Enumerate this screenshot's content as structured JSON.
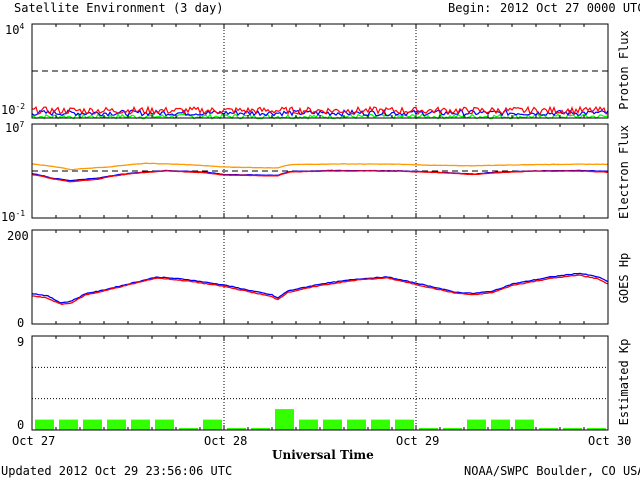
{
  "header": {
    "title": "Satellite Environment (3 day)",
    "begin_label": "Begin:",
    "begin_value": "2012 Oct 27 0000 UTC"
  },
  "footer": {
    "updated": "Updated 2012 Oct 29 23:56:06 UTC",
    "credit": "NOAA/SWPC Boulder, CO USA"
  },
  "xaxis": {
    "label": "Universal Time",
    "ticks": [
      "Oct 27",
      "Oct 28",
      "Oct 29",
      "Oct 30"
    ]
  },
  "colors": {
    "red": "#ff0000",
    "blue": "#0000ff",
    "green": "#00ff00",
    "orange": "#ff9900",
    "kp_bar": "#33ff00"
  },
  "chart_data": [
    {
      "type": "line",
      "ylabel": "Proton Flux",
      "yscale": "log",
      "ylim": [
        0.01,
        10000
      ],
      "ytick_labels": {
        "top": "10",
        "top_exp": "4",
        "bottom": "10",
        "bottom_exp": "-2"
      },
      "threshold": 10,
      "x_days": [
        0,
        3
      ],
      "series": [
        {
          "color": "red",
          "mean": 0.03,
          "spread": 0.45
        },
        {
          "color": "blue",
          "mean": 0.021,
          "spread": 0.35
        },
        {
          "color": "green",
          "mean": 0.0125,
          "spread": 0.3
        }
      ]
    },
    {
      "type": "line",
      "ylabel": "Electron Flux",
      "yscale": "log",
      "ylim": [
        0.1,
        10000000
      ],
      "ytick_labels": {
        "top": "10",
        "top_exp": "7",
        "bottom": "10",
        "bottom_exp": "-1"
      },
      "threshold": 1000,
      "series": [
        {
          "color": "orange",
          "points": [
            [
              0,
              4000
            ],
            [
              0.1,
              2500
            ],
            [
              0.2,
              1300
            ],
            [
              0.4,
              2200
            ],
            [
              0.6,
              4500
            ],
            [
              0.8,
              3500
            ],
            [
              1.0,
              2200
            ],
            [
              1.28,
              1800
            ],
            [
              1.35,
              3500
            ],
            [
              1.6,
              4000
            ],
            [
              1.9,
              3800
            ],
            [
              2.1,
              3000
            ],
            [
              2.3,
              2800
            ],
            [
              2.6,
              3500
            ],
            [
              2.85,
              3800
            ],
            [
              3.0,
              3700
            ]
          ]
        },
        {
          "color": "blue",
          "points": [
            [
              0,
              600
            ],
            [
              0.1,
              250
            ],
            [
              0.2,
              150
            ],
            [
              0.35,
              250
            ],
            [
              0.5,
              600
            ],
            [
              0.7,
              1100
            ],
            [
              0.9,
              800
            ],
            [
              1.0,
              500
            ],
            [
              1.28,
              430
            ],
            [
              1.35,
              900
            ],
            [
              1.55,
              1100
            ],
            [
              1.9,
              1050
            ],
            [
              2.1,
              800
            ],
            [
              2.3,
              550
            ],
            [
              2.4,
              750
            ],
            [
              2.6,
              1000
            ],
            [
              2.85,
              1100
            ],
            [
              3.0,
              950
            ]
          ]
        },
        {
          "color": "red",
          "points": [
            [
              0,
              500
            ],
            [
              0.1,
              220
            ],
            [
              0.2,
              120
            ],
            [
              0.35,
              200
            ],
            [
              0.5,
              550
            ],
            [
              0.7,
              1000
            ],
            [
              0.9,
              700
            ],
            [
              1.0,
              450
            ],
            [
              1.28,
              380
            ],
            [
              1.35,
              850
            ],
            [
              1.55,
              1000
            ],
            [
              1.9,
              980
            ],
            [
              2.1,
              750
            ],
            [
              2.3,
              500
            ],
            [
              2.4,
              680
            ],
            [
              2.6,
              950
            ],
            [
              2.85,
              1000
            ],
            [
              3.0,
              800
            ]
          ]
        }
      ]
    },
    {
      "type": "line",
      "ylabel": "GOES Hp",
      "ylim": [
        0,
        200
      ],
      "ytick_labels": {
        "top": "200",
        "bottom": "0"
      },
      "series": [
        {
          "color": "blue",
          "points": [
            [
              0,
              65
            ],
            [
              0.08,
              60
            ],
            [
              0.15,
              45
            ],
            [
              0.2,
              48
            ],
            [
              0.25,
              58
            ],
            [
              0.28,
              65
            ],
            [
              0.35,
              70
            ],
            [
              0.5,
              85
            ],
            [
              0.65,
              100
            ],
            [
              0.8,
              95
            ],
            [
              1.0,
              83
            ],
            [
              1.15,
              70
            ],
            [
              1.25,
              62
            ],
            [
              1.28,
              55
            ],
            [
              1.33,
              70
            ],
            [
              1.5,
              85
            ],
            [
              1.7,
              96
            ],
            [
              1.85,
              100
            ],
            [
              2.0,
              87
            ],
            [
              2.1,
              78
            ],
            [
              2.2,
              68
            ],
            [
              2.3,
              65
            ],
            [
              2.4,
              70
            ],
            [
              2.5,
              85
            ],
            [
              2.7,
              100
            ],
            [
              2.85,
              108
            ],
            [
              2.95,
              100
            ],
            [
              3.0,
              90
            ]
          ]
        },
        {
          "color": "red",
          "points": [
            [
              0,
              60
            ],
            [
              0.08,
              55
            ],
            [
              0.15,
              42
            ],
            [
              0.2,
              44
            ],
            [
              0.25,
              55
            ],
            [
              0.28,
              62
            ],
            [
              0.35,
              68
            ],
            [
              0.5,
              83
            ],
            [
              0.65,
              98
            ],
            [
              0.8,
              92
            ],
            [
              1.0,
              80
            ],
            [
              1.15,
              67
            ],
            [
              1.25,
              58
            ],
            [
              1.28,
              52
            ],
            [
              1.33,
              67
            ],
            [
              1.5,
              82
            ],
            [
              1.7,
              94
            ],
            [
              1.85,
              98
            ],
            [
              2.0,
              84
            ],
            [
              2.1,
              75
            ],
            [
              2.2,
              66
            ],
            [
              2.3,
              62
            ],
            [
              2.4,
              67
            ],
            [
              2.5,
              82
            ],
            [
              2.7,
              97
            ],
            [
              2.85,
              104
            ],
            [
              2.95,
              96
            ],
            [
              3.0,
              85
            ]
          ]
        }
      ]
    },
    {
      "type": "bar",
      "ylabel": "Estimated Kp",
      "ylim": [
        0,
        9
      ],
      "ytick_labels": {
        "top": "9",
        "bottom": "0"
      },
      "values": [
        1,
        1,
        1,
        1,
        1,
        1,
        0,
        1,
        0,
        0,
        2,
        1,
        1,
        1,
        1,
        1,
        0,
        0,
        1,
        1,
        1,
        0,
        0,
        0
      ]
    }
  ]
}
